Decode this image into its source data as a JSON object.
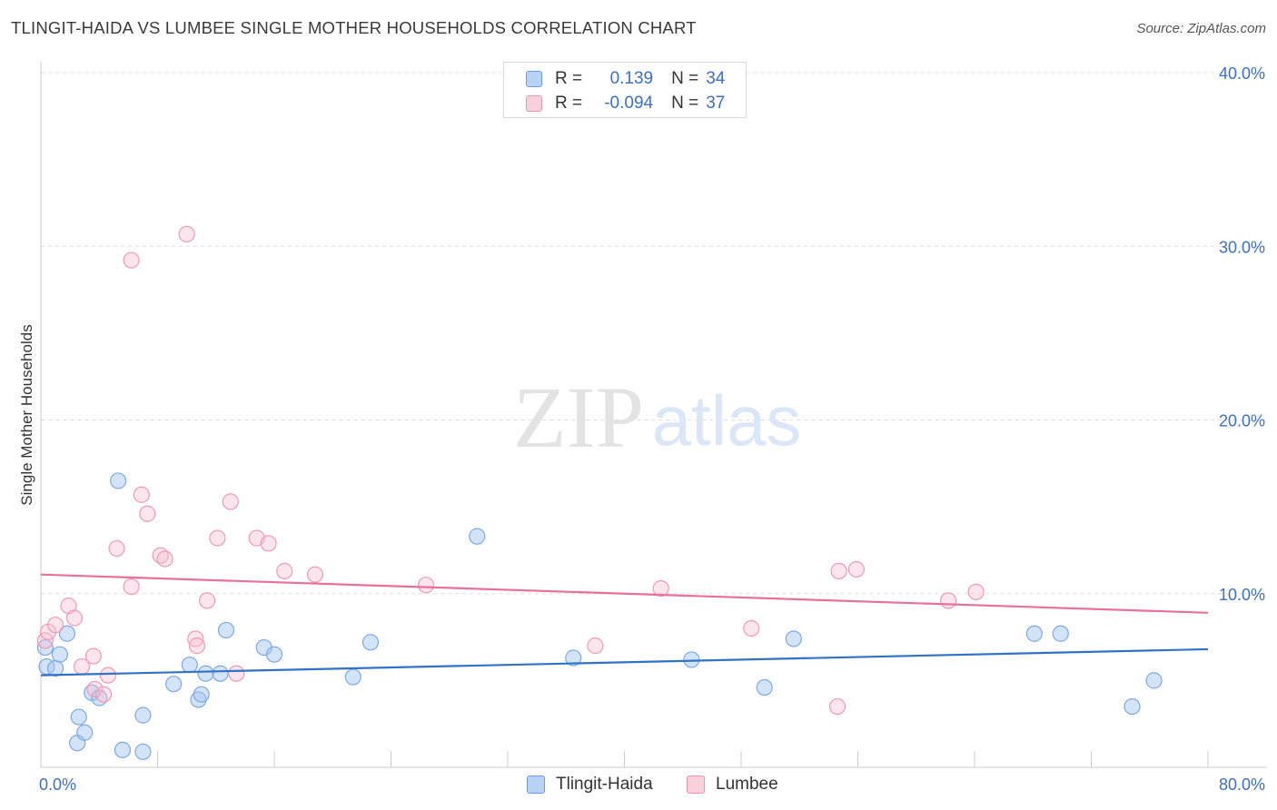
{
  "title": "TLINGIT-HAIDA VS LUMBEE SINGLE MOTHER HOUSEHOLDS CORRELATION CHART",
  "source": "Source: ZipAtlas.com",
  "watermark": {
    "zip": "ZIP",
    "atlas": "atlas"
  },
  "legend": {
    "r_label": "R =",
    "n_label": "N =",
    "rows": [
      {
        "name": "Tlingit-Haida",
        "r": "0.139",
        "n": "34",
        "fill": "#b8d3f5",
        "stroke": "#6a9be0"
      },
      {
        "name": "Lumbee",
        "r": "-0.094",
        "n": "37",
        "fill": "#fbd0dd",
        "stroke": "#ec93b0"
      }
    ]
  },
  "colors": {
    "blue_point_fill": "rgba(160,195,240,0.45)",
    "blue_point_stroke": "#7ea8e3",
    "blue_line": "#2f72c8",
    "pink_point_fill": "rgba(248,190,210,0.4)",
    "pink_point_stroke": "#ef9ab6",
    "pink_line": "#e8709a",
    "axis_text": "#3d6fc4",
    "grid": "#dddddd"
  },
  "chart_data": {
    "type": "scatter",
    "title": "TLINGIT-HAIDA VS LUMBEE SINGLE MOTHER HOUSEHOLDS CORRELATION CHART",
    "xlabel": "",
    "ylabel": "Single Mother Households",
    "xlim": [
      0,
      80
    ],
    "ylim": [
      0,
      40
    ],
    "x_tick_labels": [
      {
        "value": 0,
        "label": "0.0%"
      },
      {
        "value": 80,
        "label": "80.0%"
      }
    ],
    "y_tick_labels": [
      {
        "value": 10,
        "label": "10.0%"
      },
      {
        "value": 20,
        "label": "20.0%"
      },
      {
        "value": 30,
        "label": "30.0%"
      },
      {
        "value": 40,
        "label": "40.0%"
      }
    ],
    "series": [
      {
        "name": "Tlingit-Haida",
        "points": [
          [
            0.3,
            6.9
          ],
          [
            0.4,
            5.8
          ],
          [
            1.0,
            5.7
          ],
          [
            1.3,
            6.5
          ],
          [
            1.8,
            7.7
          ],
          [
            2.5,
            1.4
          ],
          [
            2.6,
            2.9
          ],
          [
            3.0,
            2.0
          ],
          [
            3.5,
            4.3
          ],
          [
            4.0,
            4.0
          ],
          [
            5.3,
            16.5
          ],
          [
            5.6,
            1.0
          ],
          [
            7.0,
            3.0
          ],
          [
            7.0,
            0.9
          ],
          [
            9.1,
            4.8
          ],
          [
            10.2,
            5.9
          ],
          [
            10.8,
            3.9
          ],
          [
            11.0,
            4.2
          ],
          [
            11.3,
            5.4
          ],
          [
            12.3,
            5.4
          ],
          [
            12.7,
            7.9
          ],
          [
            15.3,
            6.9
          ],
          [
            16.0,
            6.5
          ],
          [
            21.4,
            5.2
          ],
          [
            22.6,
            7.2
          ],
          [
            29.9,
            13.3
          ],
          [
            36.5,
            6.3
          ],
          [
            44.6,
            6.2
          ],
          [
            49.6,
            4.6
          ],
          [
            51.6,
            7.4
          ],
          [
            68.1,
            7.7
          ],
          [
            69.9,
            7.7
          ],
          [
            74.8,
            3.5
          ],
          [
            76.3,
            5.0
          ]
        ]
      },
      {
        "name": "Lumbee",
        "points": [
          [
            0.3,
            7.3
          ],
          [
            0.5,
            7.8
          ],
          [
            1.0,
            8.2
          ],
          [
            1.9,
            9.3
          ],
          [
            2.3,
            8.6
          ],
          [
            2.8,
            5.8
          ],
          [
            3.6,
            6.4
          ],
          [
            3.7,
            4.5
          ],
          [
            4.3,
            4.2
          ],
          [
            4.6,
            5.3
          ],
          [
            5.2,
            12.6
          ],
          [
            6.2,
            10.4
          ],
          [
            6.2,
            29.2
          ],
          [
            6.9,
            15.7
          ],
          [
            7.3,
            14.6
          ],
          [
            8.2,
            12.2
          ],
          [
            8.5,
            12.0
          ],
          [
            10.0,
            30.7
          ],
          [
            10.6,
            7.4
          ],
          [
            10.7,
            7.0
          ],
          [
            11.4,
            9.6
          ],
          [
            12.1,
            13.2
          ],
          [
            13.0,
            15.3
          ],
          [
            13.4,
            5.4
          ],
          [
            14.8,
            13.2
          ],
          [
            15.6,
            12.9
          ],
          [
            16.7,
            11.3
          ],
          [
            18.8,
            11.1
          ],
          [
            26.4,
            10.5
          ],
          [
            38.0,
            7.0
          ],
          [
            42.5,
            10.3
          ],
          [
            48.7,
            8.0
          ],
          [
            54.6,
            3.5
          ],
          [
            54.7,
            11.3
          ],
          [
            55.9,
            11.4
          ],
          [
            62.2,
            9.6
          ],
          [
            64.1,
            10.1
          ]
        ]
      }
    ],
    "trend_lines": [
      {
        "name": "Tlingit-Haida",
        "from": [
          0,
          5.3
        ],
        "to": [
          80,
          6.8
        ]
      },
      {
        "name": "Lumbee",
        "from": [
          0,
          11.1
        ],
        "to": [
          80,
          8.9
        ]
      }
    ]
  }
}
